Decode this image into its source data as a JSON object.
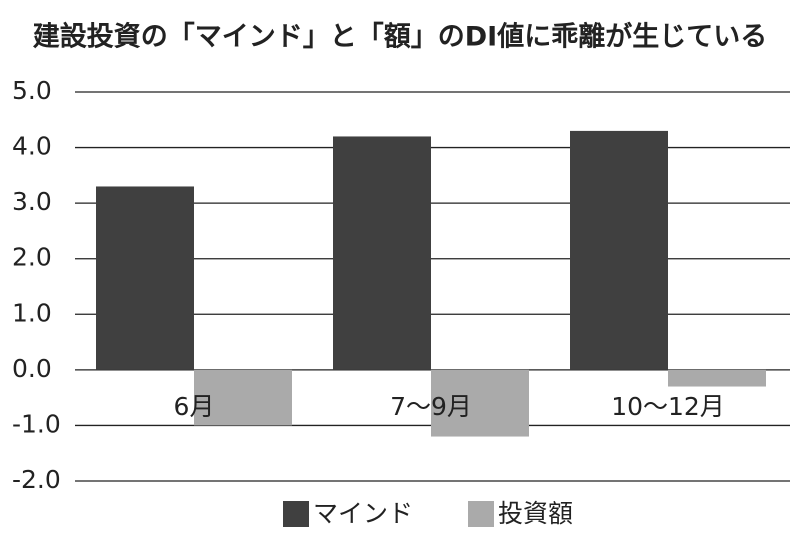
{
  "chart_data": {
    "type": "bar",
    "title": "建設投資の「マインド」と「額」のDI値に乖離が生じている",
    "categories": [
      "6月",
      "7～9月",
      "10～12月"
    ],
    "series": [
      {
        "name": "マインド",
        "color": "#404040",
        "values": [
          3.3,
          4.2,
          4.3
        ]
      },
      {
        "name": "投資額",
        "color": "#aaaaaa",
        "values": [
          -1.0,
          -1.2,
          -0.3
        ]
      }
    ],
    "ylim": [
      -2,
      5
    ],
    "yticks": [
      {
        "value": 5,
        "label": "5.0"
      },
      {
        "value": 4,
        "label": "4.0"
      },
      {
        "value": 3,
        "label": "3.0"
      },
      {
        "value": 2,
        "label": "2.0"
      },
      {
        "value": 1,
        "label": "1.0"
      },
      {
        "value": 0,
        "label": "0.0"
      },
      {
        "value": -1,
        "label": "-1.0"
      },
      {
        "value": -2,
        "label": "-2.0"
      }
    ],
    "grid": true
  }
}
